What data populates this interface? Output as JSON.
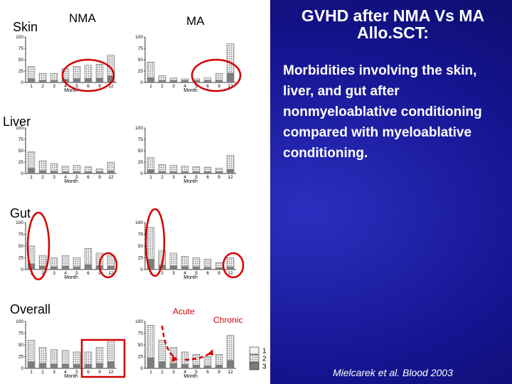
{
  "row_labels": {
    "skin": "Skin",
    "liver": "Liver",
    "gut": "Gut",
    "overall": "Overall"
  },
  "col_labels": {
    "nma": "NMA",
    "ma": "MA"
  },
  "title": "GVHD after NMA Vs MA Allo.SCT:",
  "description": "Morbidities involving the skin, liver, and gut after nonmyeloablative conditioning compared with myeloablative conditioning.",
  "citation": "Mielcarek et al. Blood 2003",
  "annotations": {
    "acute": "Acute",
    "chronic": "Chronic"
  },
  "legend": [
    "1",
    "2",
    "3"
  ],
  "colors": {
    "annotation": "#d40000",
    "background": "#1a1aa0"
  },
  "chart_data": [
    {
      "type": "bar",
      "row": "Skin",
      "column": "NMA",
      "categories": [
        "1",
        "2",
        "3",
        "4",
        "5",
        "6",
        "9",
        "12"
      ],
      "values": [
        35,
        20,
        20,
        30,
        35,
        38,
        40,
        60
      ],
      "xlabel": "Month",
      "yticks": [
        0,
        25,
        50,
        75,
        100
      ],
      "ylim": [
        0,
        100
      ]
    },
    {
      "type": "bar",
      "row": "Skin",
      "column": "MA",
      "categories": [
        "1",
        "2",
        "3",
        "4",
        "5",
        "6",
        "9",
        "12"
      ],
      "values": [
        45,
        15,
        10,
        8,
        8,
        10,
        20,
        85
      ],
      "xlabel": "Month",
      "yticks": [
        0,
        25,
        50,
        75,
        100
      ],
      "ylim": [
        0,
        100
      ]
    },
    {
      "type": "bar",
      "row": "Liver",
      "column": "NMA",
      "categories": [
        "1",
        "2",
        "3",
        "4",
        "5",
        "6",
        "9",
        "12"
      ],
      "values": [
        48,
        28,
        22,
        16,
        18,
        15,
        10,
        25
      ],
      "xlabel": "Month",
      "yticks": [
        0,
        25,
        50,
        75,
        100
      ],
      "ylim": [
        0,
        100
      ]
    },
    {
      "type": "bar",
      "row": "Liver",
      "column": "MA",
      "categories": [
        "1",
        "2",
        "3",
        "4",
        "5",
        "6",
        "9",
        "12"
      ],
      "values": [
        35,
        20,
        18,
        16,
        15,
        14,
        12,
        40
      ],
      "xlabel": "Month",
      "yticks": [
        0,
        25,
        50,
        75,
        100
      ],
      "ylim": [
        0,
        100
      ]
    },
    {
      "type": "bar",
      "row": "Gut",
      "column": "NMA",
      "categories": [
        "1",
        "2",
        "3",
        "4",
        "5",
        "6",
        "9",
        "12"
      ],
      "values": [
        50,
        30,
        25,
        30,
        25,
        45,
        35,
        30
      ],
      "xlabel": "Month",
      "yticks": [
        0,
        25,
        50,
        75,
        100
      ],
      "ylim": [
        0,
        100
      ]
    },
    {
      "type": "bar",
      "row": "Gut",
      "column": "MA",
      "categories": [
        "1",
        "2",
        "3",
        "4",
        "5",
        "6",
        "9",
        "12"
      ],
      "values": [
        90,
        40,
        35,
        28,
        25,
        22,
        15,
        25
      ],
      "xlabel": "Month",
      "yticks": [
        0,
        25,
        50,
        75,
        100
      ],
      "ylim": [
        0,
        100
      ]
    },
    {
      "type": "bar",
      "row": "Overall",
      "column": "NMA",
      "categories": [
        "1",
        "2",
        "3",
        "4",
        "5",
        "6",
        "9",
        "12"
      ],
      "values": [
        60,
        45,
        40,
        38,
        35,
        35,
        45,
        60
      ],
      "xlabel": "Month",
      "yticks": [
        0,
        25,
        50,
        75,
        100
      ],
      "ylim": [
        0,
        100
      ]
    },
    {
      "type": "bar",
      "row": "Overall",
      "column": "MA",
      "categories": [
        "1",
        "2",
        "3",
        "4",
        "5",
        "6",
        "9",
        "12"
      ],
      "values": [
        92,
        60,
        45,
        35,
        30,
        25,
        30,
        70
      ],
      "xlabel": "Month",
      "yticks": [
        0,
        25,
        50,
        75,
        100
      ],
      "ylim": [
        0,
        100
      ]
    }
  ]
}
